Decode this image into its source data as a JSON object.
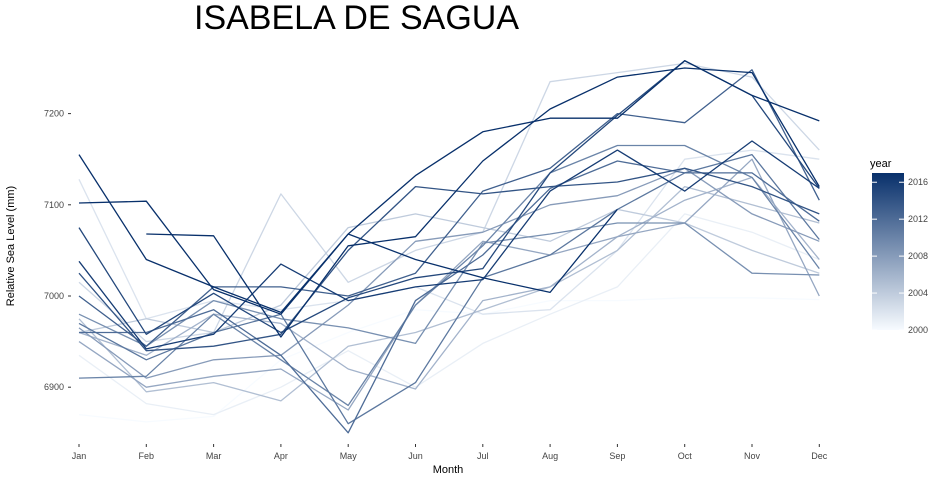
{
  "chart_data": {
    "type": "line",
    "title": "ISABELA DE SAGUA",
    "xlabel": "Month",
    "ylabel": "Relative Sea Level (mm)",
    "categories": [
      "Jan",
      "Feb",
      "Mar",
      "Apr",
      "May",
      "Jun",
      "Jul",
      "Aug",
      "Sep",
      "Oct",
      "Nov",
      "Dec"
    ],
    "ylim": [
      6840,
      7270
    ],
    "yticks": [
      6900,
      7000,
      7100,
      7200
    ],
    "grid": false,
    "legend": {
      "title": "year",
      "placement": "right",
      "min": 2000,
      "max": 2017,
      "ticks": [
        2000,
        2004,
        2008,
        2012,
        2016
      ],
      "low_color": "#f7fbff",
      "high_color": "#08306b"
    },
    "series": [
      {
        "year": 2000,
        "values": [
          6870,
          6862,
          6868,
          6930,
          6960,
          6985,
          6980,
          6995,
          6995,
          6998,
          6998,
          6996
        ]
      },
      {
        "year": 2001,
        "values": [
          6935,
          6882,
          6870,
          6900,
          6940,
          6900,
          6948,
          6980,
          7010,
          7090,
          7070,
          7040
        ]
      },
      {
        "year": 2002,
        "values": [
          7128,
          6975,
          6995,
          6985,
          6995,
          7010,
          6980,
          6985,
          7050,
          7150,
          7160,
          7150
        ]
      },
      {
        "year": 2003,
        "values": [
          7015,
          6950,
          6960,
          7112,
          7015,
          7050,
          7070,
          7235,
          7245,
          7255,
          7240,
          7160
        ]
      },
      {
        "year": 2004,
        "values": [
          6960,
          6975,
          6960,
          6990,
          7075,
          7090,
          7075,
          7060,
          7095,
          7080,
          7050,
          7025
        ]
      },
      {
        "year": 2005,
        "values": [
          6975,
          6895,
          6905,
          6885,
          6945,
          6960,
          6985,
          7010,
          7050,
          7120,
          7100,
          7080
        ]
      },
      {
        "year": 2006,
        "values": [
          6960,
          6935,
          6980,
          6970,
          6920,
          6898,
          6995,
          7010,
          7065,
          7105,
          7130,
          7040
        ]
      },
      {
        "year": 2007,
        "values": [
          6950,
          6900,
          6912,
          6920,
          6875,
          6990,
          7060,
          7045,
          7065,
          7080,
          7150,
          7000
        ]
      },
      {
        "year": 2008,
        "values": [
          6965,
          6910,
          6930,
          6935,
          6990,
          7060,
          7070,
          7100,
          7110,
          7140,
          7090,
          7060
        ]
      },
      {
        "year": 2009,
        "values": [
          6980,
          6945,
          6995,
          6975,
          6965,
          6948,
          7058,
          7068,
          7080,
          7080,
          7025,
          7023
        ]
      },
      {
        "year": 2010,
        "values": [
          6910,
          6912,
          6980,
          6930,
          6880,
          6990,
          7055,
          7135,
          7165,
          7165,
          7130,
          7030
        ]
      },
      {
        "year": 2011,
        "values": [
          6970,
          6930,
          6960,
          6980,
          6860,
          6905,
          7020,
          7045,
          7095,
          7135,
          7155,
          7062
        ]
      },
      {
        "year": 2012,
        "values": [
          6960,
          6960,
          6985,
          6935,
          6850,
          6995,
          7045,
          7118,
          7148,
          7135,
          7135,
          7082
        ]
      },
      {
        "year": 2013,
        "values": [
          7000,
          6945,
          7010,
          7010,
          7000,
          7025,
          7115,
          7140,
          7200,
          7190,
          7248,
          7105
        ]
      },
      {
        "year": 2014,
        "values": [
          7025,
          6940,
          6945,
          6958,
          7050,
          7120,
          7112,
          7120,
          7125,
          7140,
          7120,
          7090
        ]
      },
      {
        "year": 2015,
        "values": [
          7075,
          6958,
          7003,
          6960,
          6998,
          7020,
          7030,
          7135,
          7198,
          7258,
          7220,
          7118
        ]
      },
      {
        "year": 2016,
        "values": [
          7038,
          6942,
          6958,
          7035,
          6995,
          7010,
          7018,
          7115,
          7160,
          7115,
          7170,
          7118
        ]
      },
      {
        "year": 2017,
        "values": [
          7155,
          7040,
          7010,
          6982,
          7068,
          7040,
          7020,
          7004,
          7095,
          null,
          null,
          null
        ]
      },
      {
        "year": 2017,
        "values": [
          7102,
          7104,
          7007,
          6980,
          7068,
          7132,
          7180,
          7195,
          7195,
          7258,
          7220,
          7192
        ]
      },
      {
        "year": 2017,
        "values": [
          null,
          7068,
          7066,
          6955,
          7055,
          7065,
          7148,
          7205,
          7240,
          7250,
          7245,
          7120
        ]
      }
    ]
  }
}
